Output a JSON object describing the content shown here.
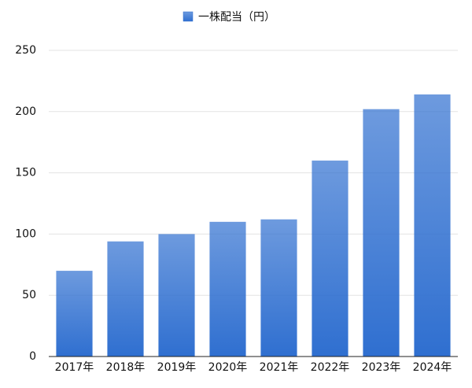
{
  "chart_data": {
    "type": "bar",
    "categories": [
      "2017年",
      "2018年",
      "2019年",
      "2020年",
      "2021年",
      "2022年",
      "2023年",
      "2024年"
    ],
    "series": [
      {
        "name": "一株配当（円）",
        "color": "#2f6fd0",
        "values": [
          70,
          94,
          100,
          110,
          112,
          160,
          202,
          214
        ]
      }
    ],
    "ylim": [
      0,
      250
    ],
    "yticks": [
      0,
      50,
      100,
      150,
      200,
      250
    ],
    "grid": true,
    "legend": "top"
  }
}
